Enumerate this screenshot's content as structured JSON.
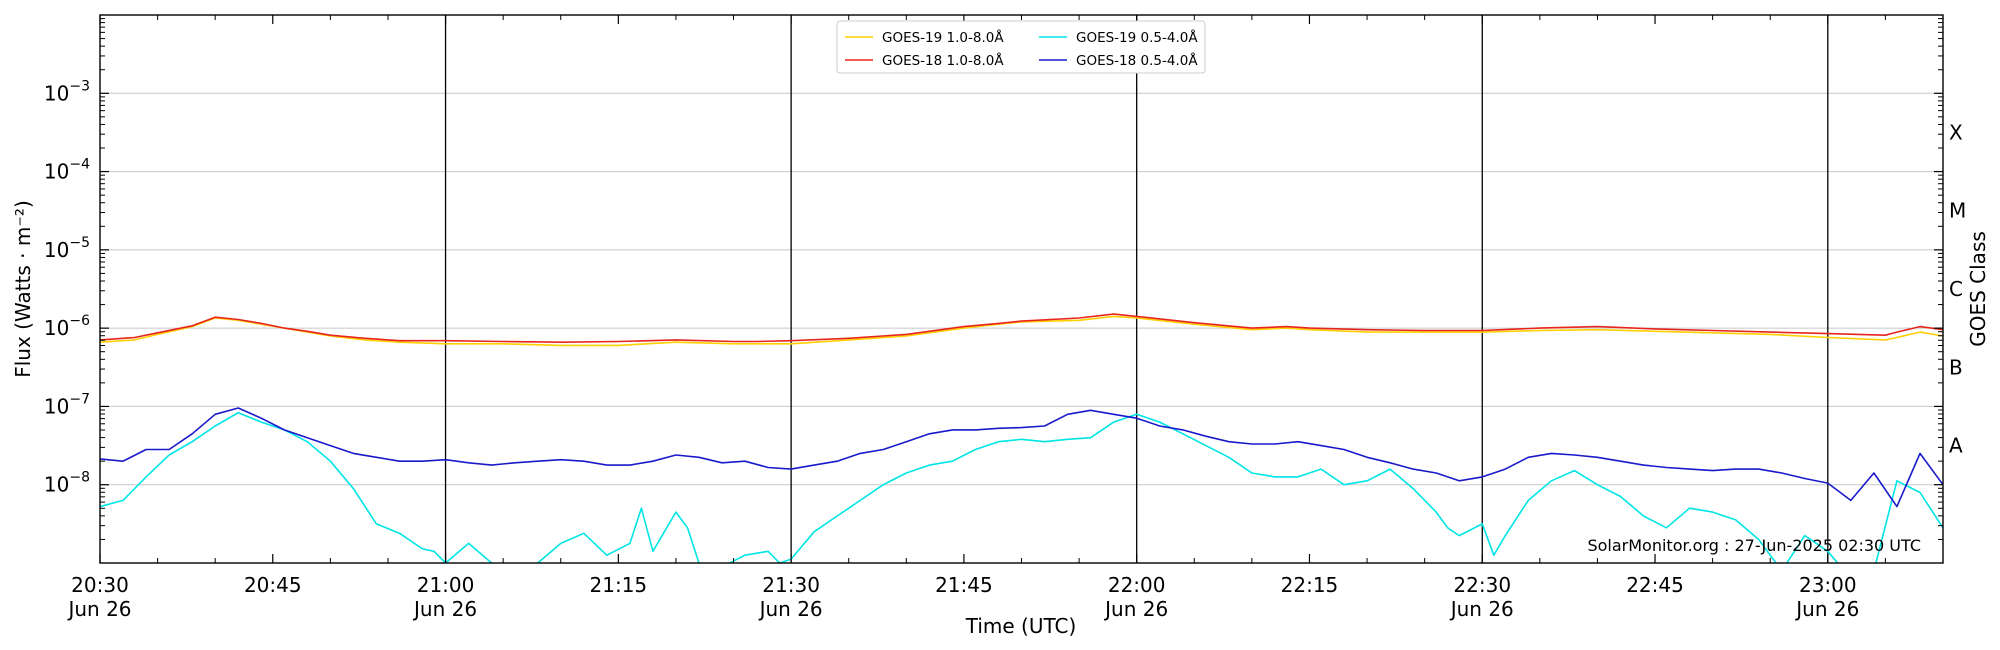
{
  "chart_data": {
    "type": "line",
    "xlabel": "Time (UTC)",
    "ylabel": "Flux (Watts · m⁻²)",
    "y2label": "GOES Class",
    "y_scale": "log",
    "ylim": [
      1e-09,
      0.01
    ],
    "xlim_minutes": [
      0,
      160
    ],
    "grid": "horizontal",
    "legend_position": "top-center",
    "x_ticks": [
      {
        "minutes": 0,
        "label": "20:30",
        "sub": "Jun 26"
      },
      {
        "minutes": 15,
        "label": "20:45",
        "sub": ""
      },
      {
        "minutes": 30,
        "label": "21:00",
        "sub": "Jun 26"
      },
      {
        "minutes": 45,
        "label": "21:15",
        "sub": ""
      },
      {
        "minutes": 60,
        "label": "21:30",
        "sub": "Jun 26"
      },
      {
        "minutes": 75,
        "label": "21:45",
        "sub": ""
      },
      {
        "minutes": 90,
        "label": "22:00",
        "sub": "Jun 26"
      },
      {
        "minutes": 105,
        "label": "22:15",
        "sub": ""
      },
      {
        "minutes": 120,
        "label": "22:30",
        "sub": "Jun 26"
      },
      {
        "minutes": 135,
        "label": "22:45",
        "sub": ""
      },
      {
        "minutes": 150,
        "label": "23:00",
        "sub": "Jun 26"
      }
    ],
    "vlines_minutes": [
      30,
      60,
      90,
      120,
      150
    ],
    "y_ticks": [
      {
        "exp": -8,
        "label": "10−8"
      },
      {
        "exp": -7,
        "label": "10−7"
      },
      {
        "exp": -6,
        "label": "10−6"
      },
      {
        "exp": -5,
        "label": "10−5"
      },
      {
        "exp": -4,
        "label": "10−4"
      },
      {
        "exp": -3,
        "label": "10−3"
      }
    ],
    "goes_classes": [
      {
        "label": "A",
        "exp": -7.5
      },
      {
        "label": "B",
        "exp": -6.5
      },
      {
        "label": "C",
        "exp": -5.5
      },
      {
        "label": "M",
        "exp": -4.5
      },
      {
        "label": "X",
        "exp": -3.5
      }
    ],
    "credit": "SolarMonitor.org : 27-Jun-2025 02:30 UTC",
    "series": [
      {
        "name": "GOES-19 1.0-8.0Å",
        "color": "#ffd000",
        "x": [
          0,
          3,
          5,
          8,
          10,
          12,
          14,
          16,
          18,
          20,
          23,
          26,
          30,
          35,
          40,
          45,
          50,
          55,
          57,
          60,
          65,
          70,
          75,
          78,
          80,
          85,
          88,
          90,
          95,
          100,
          103,
          105,
          110,
          115,
          120,
          125,
          130,
          135,
          140,
          145,
          150,
          155,
          156,
          158,
          160
        ],
        "log10_y": [
          -6.18,
          -6.15,
          -6.08,
          -5.98,
          -5.87,
          -5.9,
          -5.95,
          -6.0,
          -6.05,
          -6.1,
          -6.15,
          -6.18,
          -6.2,
          -6.2,
          -6.22,
          -6.22,
          -6.18,
          -6.2,
          -6.2,
          -6.2,
          -6.15,
          -6.1,
          -6.0,
          -5.95,
          -5.92,
          -5.9,
          -5.85,
          -5.87,
          -5.95,
          -6.02,
          -6.0,
          -6.02,
          -6.05,
          -6.05,
          -6.05,
          -6.03,
          -6.02,
          -6.04,
          -6.06,
          -6.08,
          -6.12,
          -6.15,
          -6.12,
          -6.05,
          -6.1
        ]
      },
      {
        "name": "GOES-18 1.0-8.0Å",
        "color": "#e8251d",
        "x": [
          0,
          3,
          5,
          8,
          10,
          12,
          14,
          16,
          18,
          20,
          23,
          26,
          30,
          35,
          40,
          45,
          50,
          55,
          57,
          60,
          65,
          70,
          75,
          78,
          80,
          85,
          88,
          90,
          95,
          100,
          103,
          105,
          110,
          115,
          120,
          125,
          130,
          135,
          140,
          145,
          150,
          155,
          156,
          158,
          160
        ],
        "log10_y": [
          -6.15,
          -6.12,
          -6.06,
          -5.97,
          -5.86,
          -5.89,
          -5.94,
          -6.0,
          -6.04,
          -6.09,
          -6.13,
          -6.16,
          -6.16,
          -6.17,
          -6.18,
          -6.17,
          -6.15,
          -6.17,
          -6.17,
          -6.16,
          -6.13,
          -6.08,
          -5.98,
          -5.94,
          -5.91,
          -5.87,
          -5.82,
          -5.85,
          -5.93,
          -6.0,
          -5.98,
          -6.0,
          -6.02,
          -6.03,
          -6.03,
          -6.0,
          -5.98,
          -6.01,
          -6.03,
          -6.05,
          -6.07,
          -6.09,
          -6.05,
          -5.98,
          -6.02
        ]
      },
      {
        "name": "GOES-19 0.5-4.0Å",
        "color": "#00e5e5",
        "x": [
          0,
          2,
          4,
          6,
          8,
          10,
          12,
          14,
          16,
          18,
          20,
          22,
          24,
          26,
          28,
          29,
          30,
          32,
          34,
          36,
          38,
          40,
          42,
          44,
          46,
          47,
          48,
          49,
          50,
          51,
          52,
          54,
          56,
          58,
          59,
          60,
          62,
          64,
          66,
          68,
          70,
          72,
          74,
          76,
          78,
          80,
          82,
          84,
          86,
          88,
          90,
          92,
          94,
          96,
          98,
          100,
          102,
          104,
          106,
          108,
          110,
          112,
          114,
          116,
          117,
          118,
          120,
          121,
          122,
          124,
          126,
          128,
          130,
          132,
          134,
          136,
          138,
          140,
          142,
          144,
          146,
          148,
          150,
          152,
          154,
          156,
          158,
          160
        ],
        "log10_y": [
          -8.28,
          -8.2,
          -7.9,
          -7.62,
          -7.45,
          -7.25,
          -7.08,
          -7.2,
          -7.3,
          -7.45,
          -7.7,
          -8.05,
          -8.5,
          -8.62,
          -8.82,
          -8.85,
          -9.0,
          -8.75,
          -9.0,
          -9.05,
          -9.0,
          -8.75,
          -8.62,
          -8.9,
          -8.75,
          -8.3,
          -8.85,
          -8.6,
          -8.35,
          -8.55,
          -9.0,
          -9.05,
          -8.9,
          -8.85,
          -9.0,
          -8.95,
          -8.6,
          -8.4,
          -8.2,
          -8.0,
          -7.85,
          -7.75,
          -7.7,
          -7.55,
          -7.45,
          -7.42,
          -7.45,
          -7.42,
          -7.4,
          -7.2,
          -7.1,
          -7.2,
          -7.35,
          -7.5,
          -7.65,
          -7.85,
          -7.9,
          -7.9,
          -7.8,
          -8.0,
          -7.95,
          -7.8,
          -8.05,
          -8.35,
          -8.55,
          -8.65,
          -8.5,
          -8.9,
          -8.65,
          -8.2,
          -7.95,
          -7.82,
          -8.0,
          -8.15,
          -8.4,
          -8.55,
          -8.3,
          -8.35,
          -8.45,
          -8.7,
          -9.1,
          -8.65,
          -8.85,
          -9.2,
          -9.1,
          -7.95,
          -8.1,
          -8.55
        ]
      },
      {
        "name": "GOES-18 0.5-4.0Å",
        "color": "#1a1acc",
        "x": [
          0,
          2,
          4,
          6,
          8,
          10,
          12,
          14,
          16,
          18,
          20,
          22,
          24,
          26,
          28,
          30,
          32,
          34,
          36,
          38,
          40,
          42,
          44,
          46,
          48,
          50,
          52,
          54,
          56,
          58,
          60,
          62,
          64,
          66,
          68,
          70,
          72,
          74,
          76,
          78,
          80,
          82,
          84,
          86,
          88,
          90,
          92,
          94,
          96,
          98,
          100,
          102,
          104,
          106,
          108,
          110,
          112,
          114,
          116,
          118,
          120,
          122,
          124,
          126,
          128,
          130,
          132,
          134,
          136,
          138,
          140,
          142,
          144,
          146,
          148,
          150,
          152,
          154,
          156,
          158,
          160
        ],
        "log10_y": [
          -7.67,
          -7.7,
          -7.55,
          -7.55,
          -7.35,
          -7.1,
          -7.02,
          -7.15,
          -7.3,
          -7.4,
          -7.5,
          -7.6,
          -7.65,
          -7.7,
          -7.7,
          -7.68,
          -7.72,
          -7.75,
          -7.72,
          -7.7,
          -7.68,
          -7.7,
          -7.75,
          -7.75,
          -7.7,
          -7.62,
          -7.65,
          -7.72,
          -7.7,
          -7.78,
          -7.8,
          -7.75,
          -7.7,
          -7.6,
          -7.55,
          -7.45,
          -7.35,
          -7.3,
          -7.3,
          -7.28,
          -7.27,
          -7.25,
          -7.1,
          -7.05,
          -7.1,
          -7.15,
          -7.25,
          -7.3,
          -7.38,
          -7.45,
          -7.48,
          -7.48,
          -7.45,
          -7.5,
          -7.55,
          -7.65,
          -7.72,
          -7.8,
          -7.85,
          -7.95,
          -7.9,
          -7.8,
          -7.65,
          -7.6,
          -7.62,
          -7.65,
          -7.7,
          -7.75,
          -7.78,
          -7.8,
          -7.82,
          -7.8,
          -7.8,
          -7.85,
          -7.92,
          -7.98,
          -8.2,
          -7.85,
          -8.28,
          -7.6,
          -8.0
        ]
      }
    ]
  }
}
